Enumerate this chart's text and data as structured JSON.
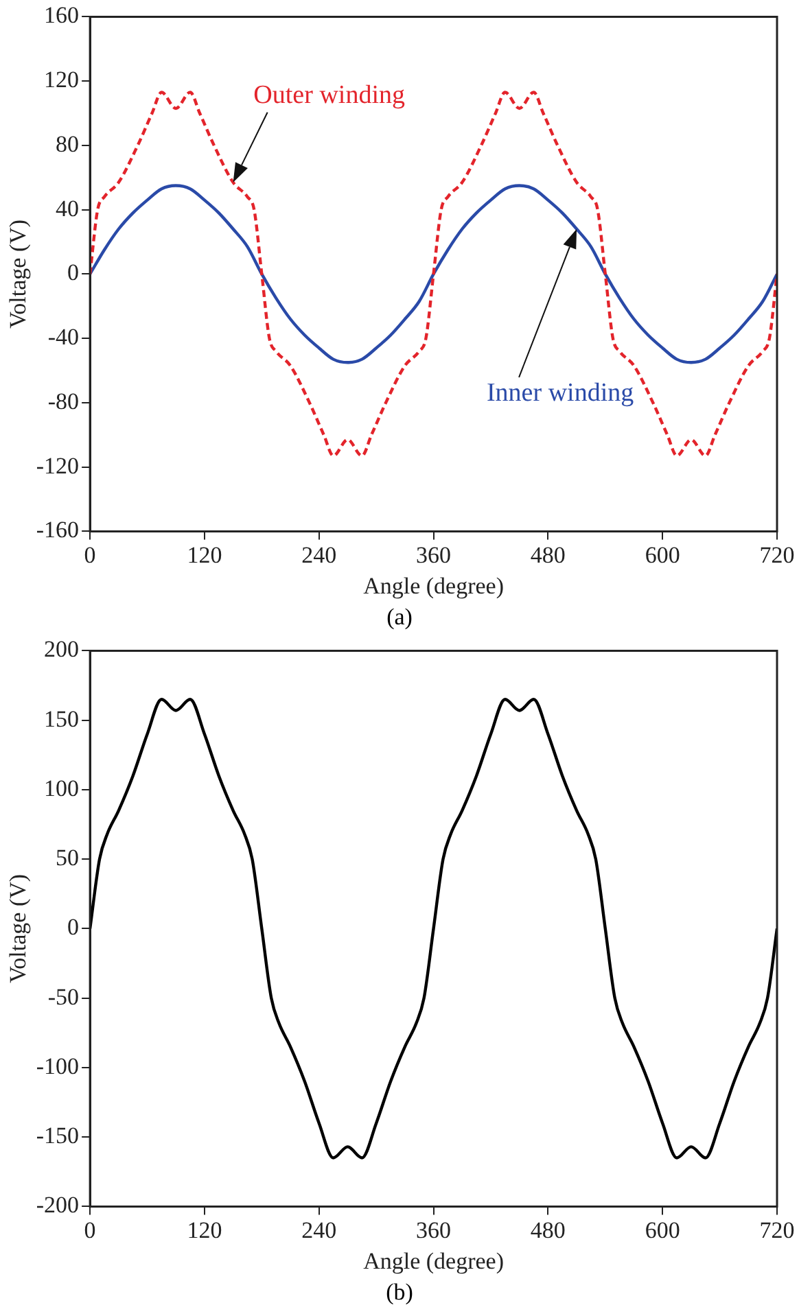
{
  "chart_data": [
    {
      "type": "line",
      "xlabel": "Angle (degree)",
      "ylabel": "Voltage (V)",
      "xlim": [
        0,
        720
      ],
      "ylim": [
        -160,
        160
      ],
      "xticks": [
        0,
        120,
        240,
        360,
        480,
        600,
        720
      ],
      "yticks": [
        160,
        120,
        80,
        40,
        0,
        -40,
        -80,
        -120,
        -160
      ],
      "legend": false,
      "marker": "none",
      "annotations": [
        "(a)"
      ],
      "series": [
        {
          "name": "Outer winding",
          "color": "#e3242b",
          "line_style": "dashed",
          "x": [
            0,
            8,
            15,
            30,
            50,
            65,
            75,
            90,
            105,
            115,
            130,
            150,
            165,
            172,
            180,
            188,
            195,
            210,
            230,
            245,
            255,
            270,
            285,
            295,
            310,
            330,
            345,
            352,
            360,
            368,
            375,
            390,
            410,
            425,
            435,
            450,
            465,
            475,
            490,
            510,
            525,
            532,
            540,
            548,
            555,
            570,
            590,
            605,
            615,
            630,
            645,
            655,
            670,
            690,
            705,
            712,
            720
          ],
          "values": [
            0,
            40,
            48,
            57,
            80,
            100,
            113,
            103,
            113,
            100,
            80,
            57,
            48,
            40,
            0,
            -40,
            -48,
            -57,
            -80,
            -100,
            -113,
            -103,
            -113,
            -100,
            -80,
            -57,
            -48,
            -40,
            0,
            40,
            48,
            57,
            80,
            100,
            113,
            103,
            113,
            100,
            80,
            57,
            48,
            40,
            0,
            -40,
            -48,
            -57,
            -80,
            -100,
            -113,
            -103,
            -113,
            -100,
            -80,
            -57,
            -48,
            -40,
            0
          ]
        },
        {
          "name": "Inner winding",
          "color": "#2a4aa8",
          "line_style": "solid",
          "x": [
            0,
            15,
            30,
            45,
            60,
            75,
            90,
            105,
            120,
            135,
            150,
            165,
            180,
            195,
            210,
            225,
            240,
            255,
            270,
            285,
            300,
            315,
            330,
            345,
            360,
            375,
            390,
            405,
            420,
            435,
            450,
            465,
            480,
            495,
            510,
            525,
            540,
            555,
            570,
            585,
            600,
            615,
            630,
            645,
            660,
            675,
            690,
            705,
            720
          ],
          "values": [
            0,
            15,
            28,
            38,
            46,
            53,
            55,
            53,
            46,
            38,
            28,
            17,
            0,
            -15,
            -28,
            -38,
            -46,
            -53,
            -55,
            -53,
            -46,
            -38,
            -28,
            -17,
            0,
            15,
            28,
            38,
            46,
            53,
            55,
            53,
            46,
            38,
            28,
            17,
            0,
            -15,
            -28,
            -38,
            -46,
            -53,
            -55,
            -53,
            -46,
            -38,
            -28,
            -17,
            0
          ]
        }
      ]
    },
    {
      "type": "line",
      "xlabel": "Angle (degree)",
      "ylabel": "Voltage (V)",
      "xlim": [
        0,
        720
      ],
      "ylim": [
        -200,
        200
      ],
      "xticks": [
        0,
        120,
        240,
        360,
        480,
        600,
        720
      ],
      "yticks": [
        200,
        150,
        100,
        50,
        0,
        -50,
        -100,
        -150,
        -200
      ],
      "legend": false,
      "marker": "none",
      "annotations": [
        "(b)"
      ],
      "series": [
        {
          "color": "#000000",
          "line_style": "solid",
          "x": [
            0,
            10,
            18,
            30,
            45,
            60,
            75,
            90,
            105,
            120,
            135,
            150,
            162,
            170,
            180,
            190,
            198,
            210,
            225,
            240,
            255,
            270,
            285,
            300,
            315,
            330,
            342,
            350,
            360,
            370,
            378,
            390,
            405,
            420,
            435,
            450,
            465,
            480,
            495,
            510,
            522,
            530,
            540,
            550,
            558,
            570,
            585,
            600,
            615,
            630,
            645,
            660,
            675,
            690,
            702,
            710,
            720
          ],
          "values": [
            0,
            50,
            68,
            85,
            110,
            140,
            165,
            157,
            165,
            140,
            110,
            85,
            68,
            50,
            0,
            -50,
            -68,
            -85,
            -110,
            -140,
            -165,
            -157,
            -165,
            -140,
            -110,
            -85,
            -68,
            -50,
            0,
            50,
            68,
            85,
            110,
            140,
            165,
            157,
            165,
            140,
            110,
            85,
            68,
            50,
            0,
            -50,
            -68,
            -85,
            -110,
            -140,
            -165,
            -157,
            -165,
            -140,
            -110,
            -85,
            -68,
            -50,
            0
          ]
        }
      ]
    }
  ]
}
